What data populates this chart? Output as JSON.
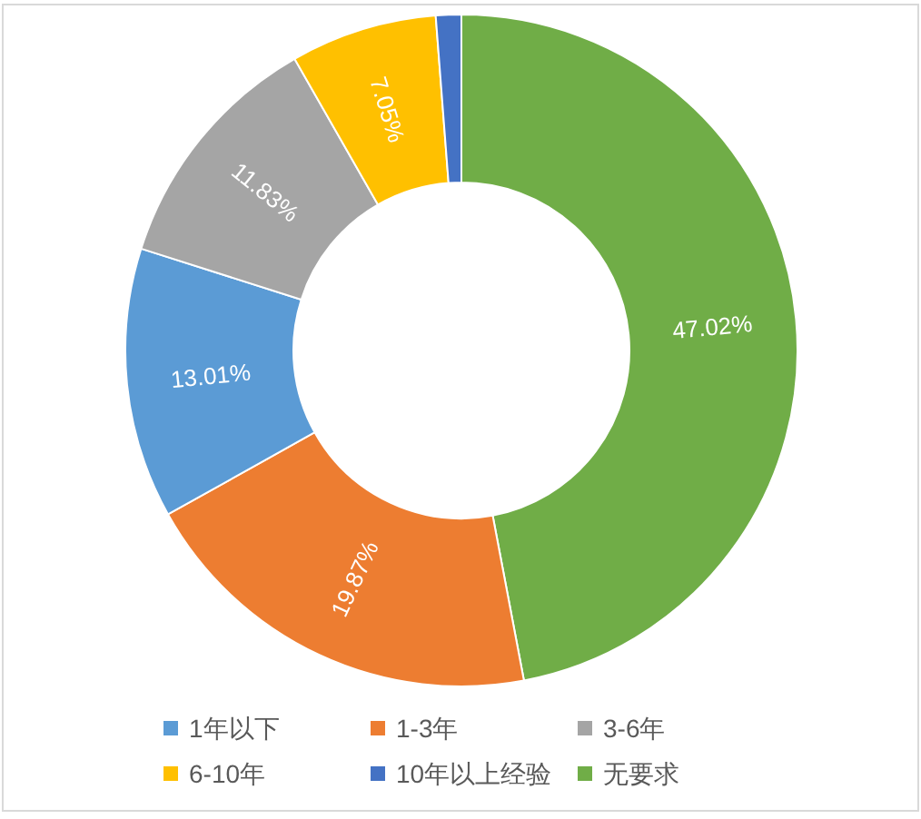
{
  "chart_data": {
    "type": "donut",
    "categories": [
      "无要求",
      "1-3年",
      "1年以下",
      "3-6年",
      "6-10年",
      "10年以上经验"
    ],
    "values": [
      47.02,
      19.87,
      13.01,
      11.83,
      7.05,
      1.22
    ],
    "colors": [
      "#70ad47",
      "#ed7d31",
      "#5b9bd5",
      "#a5a5a5",
      "#ffc000",
      "#4472c4"
    ],
    "value_labels": [
      "47.02%",
      "19.87%",
      "13.01%",
      "11.83%",
      "7.05%",
      null
    ],
    "legend": "bottom"
  }
}
